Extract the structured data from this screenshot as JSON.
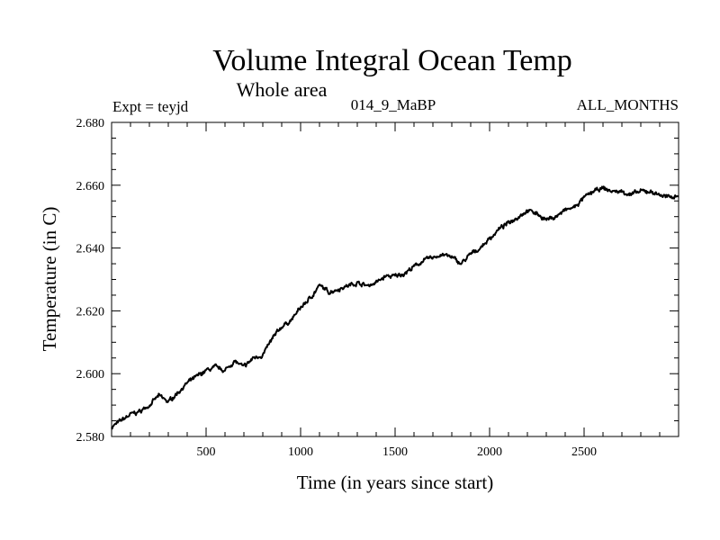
{
  "chart_data": {
    "type": "line",
    "title": "Volume Integral Ocean Temp",
    "subtitle": "Whole area",
    "header_left": "Expt = teyjd",
    "header_center": "014_9_MaBP",
    "header_right": "ALL_MONTHS",
    "xlabel": "Time (in years since start)",
    "ylabel": "Temperature (in C)",
    "xlim": [
      0,
      3000
    ],
    "ylim": [
      2.58,
      2.68
    ],
    "x_ticks": [
      500,
      1000,
      1500,
      2000,
      2500
    ],
    "y_ticks": [
      "2.580",
      "2.600",
      "2.620",
      "2.640",
      "2.660",
      "2.680"
    ],
    "series": [
      {
        "name": "Volume Integral Ocean Temp",
        "color": "#000000",
        "x": [
          0,
          50,
          100,
          150,
          200,
          250,
          300,
          350,
          400,
          450,
          500,
          550,
          600,
          650,
          700,
          750,
          800,
          850,
          900,
          950,
          1000,
          1050,
          1100,
          1150,
          1200,
          1250,
          1300,
          1350,
          1400,
          1450,
          1500,
          1550,
          1600,
          1650,
          1700,
          1750,
          1800,
          1850,
          1900,
          1950,
          2000,
          2050,
          2100,
          2150,
          2200,
          2250,
          2300,
          2350,
          2400,
          2450,
          2500,
          2550,
          2600,
          2650,
          2700,
          2750,
          2800,
          2850,
          2900,
          2950,
          3000
        ],
        "values": [
          2.583,
          2.585,
          2.587,
          2.588,
          2.59,
          2.593,
          2.591,
          2.594,
          2.597,
          2.599,
          2.601,
          2.602,
          2.601,
          2.604,
          2.602,
          2.605,
          2.606,
          2.611,
          2.615,
          2.617,
          2.621,
          2.624,
          2.628,
          2.626,
          2.627,
          2.628,
          2.629,
          2.628,
          2.629,
          2.631,
          2.631,
          2.632,
          2.634,
          2.636,
          2.637,
          2.638,
          2.637,
          2.635,
          2.638,
          2.64,
          2.643,
          2.646,
          2.648,
          2.65,
          2.652,
          2.651,
          2.649,
          2.65,
          2.652,
          2.653,
          2.656,
          2.658,
          2.659,
          2.658,
          2.658,
          2.657,
          2.658,
          2.658,
          2.657,
          2.656,
          2.657
        ]
      }
    ]
  }
}
